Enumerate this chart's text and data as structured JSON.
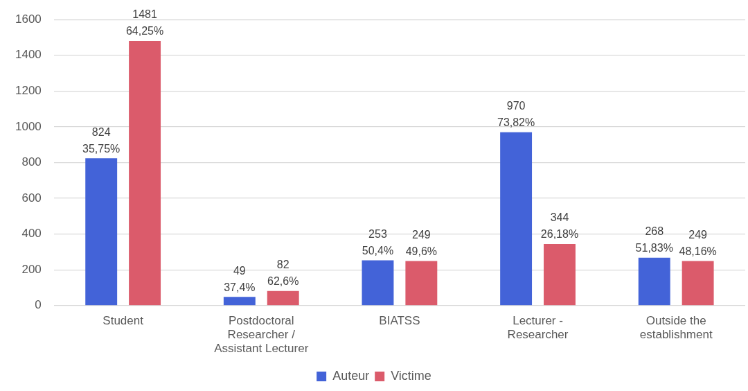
{
  "chart_data": {
    "type": "bar",
    "categories": [
      "Student",
      "Postdoctoral Researcher / Assistant Lecturer",
      "BIATSS",
      "Lecturer - Researcher",
      "Outside the establishment"
    ],
    "series": [
      {
        "name": "Auteur",
        "color": "#4363d8",
        "values": [
          824,
          49,
          253,
          970,
          268
        ],
        "value_labels": [
          "824\n35,75%",
          "49\n37,4%",
          "253\n50,4%",
          "970\n73,82%",
          "268\n51,83%"
        ]
      },
      {
        "name": "Victime",
        "color": "#db5b6b",
        "values": [
          1481,
          82,
          249,
          344,
          249
        ],
        "value_labels": [
          "1481\n64,25%",
          "82\n62,6%",
          "249\n49,6%",
          "344\n26,18%",
          "249\n48,16%"
        ]
      }
    ],
    "ylim": [
      0,
      1600
    ],
    "yticks": [
      0,
      200,
      400,
      600,
      800,
      1000,
      1200,
      1400,
      1600
    ],
    "grid": "y",
    "legend": "bottom"
  }
}
